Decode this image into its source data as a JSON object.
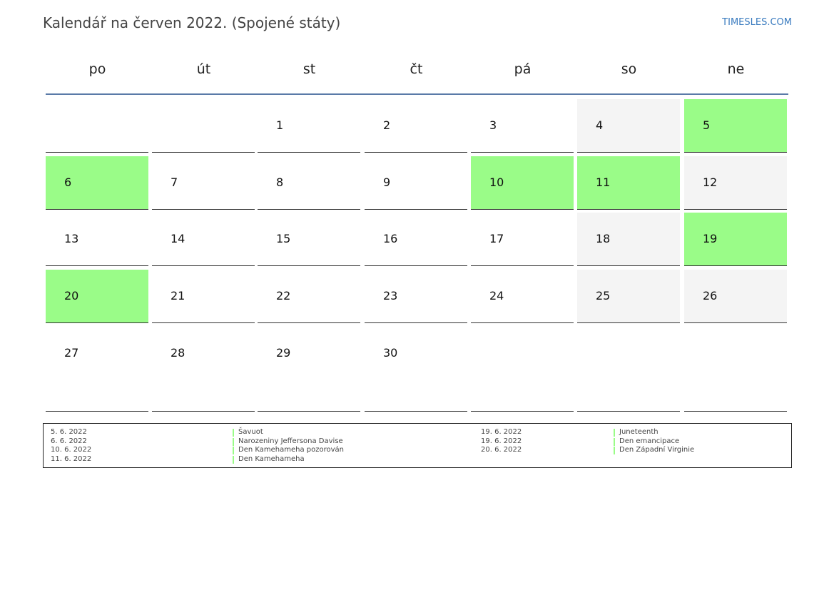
{
  "header": {
    "title": "Kalendář na červen 2022. (Spojené státy)",
    "site": "TIMESLES.COM"
  },
  "weekdays": [
    "po",
    "út",
    "st",
    "čt",
    "pá",
    "so",
    "ne"
  ],
  "weeks": [
    [
      null,
      null,
      1,
      2,
      3,
      4,
      5
    ],
    [
      6,
      7,
      8,
      9,
      10,
      11,
      12
    ],
    [
      13,
      14,
      15,
      16,
      17,
      18,
      19
    ],
    [
      20,
      21,
      22,
      23,
      24,
      25,
      26
    ],
    [
      27,
      28,
      29,
      30,
      null,
      null,
      null
    ]
  ],
  "holidays": [
    [
      {
        "date": "5. 6. 2022",
        "name": "Šavuot"
      },
      {
        "date": "6. 6. 2022",
        "name": "Narozeniny Jeffersona Davise"
      },
      {
        "date": "10. 6. 2022",
        "name": "Den Kamehameha pozorován"
      },
      {
        "date": "11. 6. 2022",
        "name": "Den Kamehameha"
      }
    ],
    [
      {
        "date": "19. 6. 2022",
        "name": "Juneteenth"
      },
      {
        "date": "19. 6. 2022",
        "name": "Den emancipace"
      },
      {
        "date": "20. 6. 2022",
        "name": "Den Západní Virginie"
      }
    ]
  ]
}
